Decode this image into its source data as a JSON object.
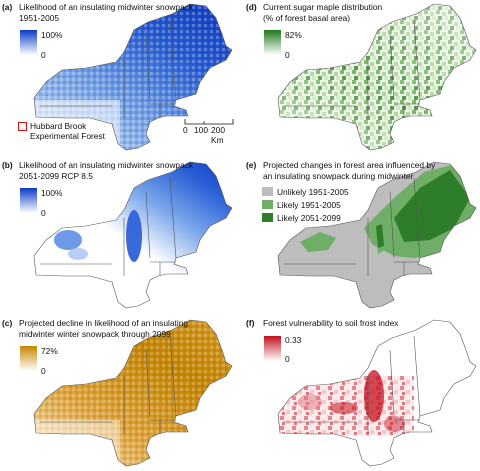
{
  "panels": [
    {
      "id": "a",
      "label": "(a)",
      "title1": "Likelihood of an insulating midwinter snowpack",
      "title2": "1951-2005",
      "legend_max": "100%",
      "legend_min": "0",
      "colors": {
        "low": "#ffffff",
        "high": "#0a3ac8"
      },
      "extra": {
        "hubbard_label1": "Hubbard Brook",
        "hubbard_label2": "Experimental Forest",
        "scale_ticks": [
          "0",
          "100",
          "200 Km"
        ]
      }
    },
    {
      "id": "b",
      "label": "(b)",
      "title1": "Likelihood of an insulating midwinter snowpack",
      "title2": "2051-2099 RCP 8.5",
      "legend_max": "100%",
      "legend_min": "0",
      "colors": {
        "low": "#ffffff",
        "high": "#0a3ac8"
      }
    },
    {
      "id": "c",
      "label": "(c)",
      "title1": "Projected decline in likelihood of an insulating",
      "title2": "midwinter winter snowpack through 2099",
      "legend_max": "72%",
      "legend_min": "0",
      "colors": {
        "low": "#ffffff",
        "high": "#c78600"
      }
    },
    {
      "id": "d",
      "label": "(d)",
      "title1": "Current sugar maple distribution",
      "title2": "(% of forest basal area)",
      "legend_max": "82%",
      "legend_min": "0",
      "colors": {
        "low": "#ffffff",
        "high": "#1f7a1a"
      }
    },
    {
      "id": "e",
      "label": "(e)",
      "title1": "Projected changes in forest area influenced by",
      "title2": "an insulating snowpack during midwinter",
      "categories": [
        {
          "name": "Unlikely 1951-2005",
          "color": "#bdbdbd"
        },
        {
          "name": "Likely 1951-2005",
          "color": "#6fae66"
        },
        {
          "name": "Likely 2051-2099",
          "color": "#2e7d2a"
        }
      ]
    },
    {
      "id": "f",
      "label": "(f)",
      "title1": "Forest vulnerability to soil frost index",
      "title2": "",
      "legend_max": "0.33",
      "legend_min": "0",
      "colors": {
        "low": "#ffffff",
        "high": "#c4101e"
      }
    }
  ]
}
